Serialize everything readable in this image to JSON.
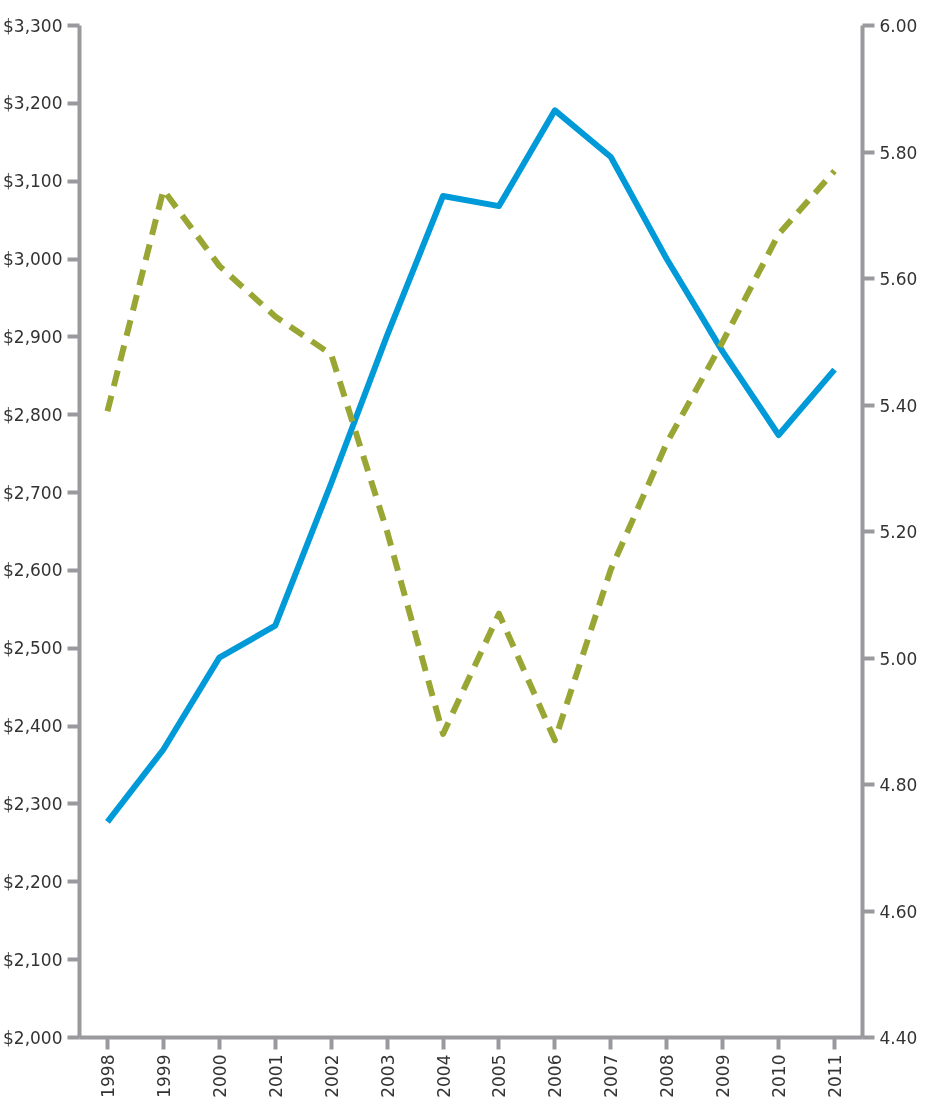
{
  "chart_data": {
    "type": "line",
    "categories": [
      "1998",
      "1999",
      "2000",
      "2001",
      "2002",
      "2003",
      "2004",
      "2005",
      "2006",
      "2007",
      "2008",
      "2009",
      "2010",
      "2011"
    ],
    "series": [
      {
        "color": "#009ad8",
        "line_style": "solid",
        "values": [
          2277,
          2370,
          2488,
          2529,
          2712,
          2902,
          3081,
          3068,
          3191,
          3131,
          3000,
          2881,
          2774,
          2858
        ]
      },
      {
        "color": "#9aa634",
        "line_style": "dashed",
        "axis": "y2",
        "values": [
          5.39,
          5.74,
          5.62,
          5.54,
          5.48,
          5.2,
          4.88,
          5.07,
          4.87,
          5.14,
          5.34,
          5.5,
          5.67,
          5.77
        ]
      }
    ],
    "ylim": [
      2000,
      3300
    ],
    "yticks": [
      {
        "value": 2000,
        "label": "$2,000"
      },
      {
        "value": 2100,
        "label": "$2,100"
      },
      {
        "value": 2200,
        "label": "$2,200"
      },
      {
        "value": 2300,
        "label": "$2,300"
      },
      {
        "value": 2400,
        "label": "$2,400"
      },
      {
        "value": 2500,
        "label": "$2,500"
      },
      {
        "value": 2600,
        "label": "$2,600"
      },
      {
        "value": 2700,
        "label": "$2,700"
      },
      {
        "value": 2800,
        "label": "$2,800"
      },
      {
        "value": 2900,
        "label": "$2,900"
      },
      {
        "value": 3000,
        "label": "$3,000"
      },
      {
        "value": 3100,
        "label": "$3,100"
      },
      {
        "value": 3200,
        "label": "$3,200"
      },
      {
        "value": 3300,
        "label": "$3,300"
      }
    ],
    "y2lim": [
      4.4,
      6.0
    ],
    "y2ticks": [
      {
        "value": 4.4,
        "label": "4.40"
      },
      {
        "value": 4.6,
        "label": "4.60"
      },
      {
        "value": 4.8,
        "label": "4.80"
      },
      {
        "value": 5.0,
        "label": "5.00"
      },
      {
        "value": 5.2,
        "label": "5.20"
      },
      {
        "value": 5.4,
        "label": "5.40"
      },
      {
        "value": 5.6,
        "label": "5.60"
      },
      {
        "value": 5.8,
        "label": "5.80"
      },
      {
        "value": 6.0,
        "label": "6.00"
      }
    ],
    "grid": false,
    "marker": "none"
  }
}
